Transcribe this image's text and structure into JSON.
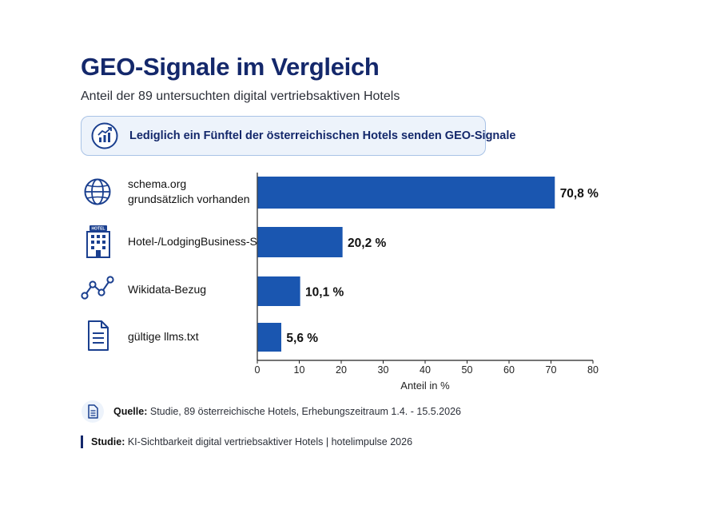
{
  "header": {
    "title": "GEO-Signale im Vergleich",
    "subtitle": "Anteil der 89 untersuchten digital vertriebsaktiven Hotels"
  },
  "callout": {
    "icon": "trend-chart-icon",
    "text": "Lediglich ein Fünftel der österreichischen Hotels senden GEO-Signale"
  },
  "categories": [
    {
      "icon": "globe-icon",
      "label_lines": [
        "schema.org",
        "grundsätzlich vorhanden"
      ]
    },
    {
      "icon": "hotel-building-icon",
      "icon_text": "HOTEL",
      "label_lines": [
        "Hotel-/LodgingBusiness-Schema"
      ]
    },
    {
      "icon": "network-nodes-icon",
      "label_lines": [
        "Wikidata-Bezug"
      ]
    },
    {
      "icon": "document-icon",
      "label_lines": [
        "gültige llms.txt"
      ]
    }
  ],
  "chart_data": {
    "type": "bar",
    "orientation": "horizontal",
    "title": "GEO-Signale im Vergleich",
    "subtitle": "Anteil der 89 untersuchten digital vertriebsaktiven Hotels",
    "categories": [
      "schema.org grundsätzlich vorhanden",
      "Hotel-/LodgingBusiness-Schema",
      "Wikidata-Bezug",
      "gültige llms.txt"
    ],
    "values": [
      70.8,
      20.2,
      10.1,
      5.6
    ],
    "data_labels": [
      "70,8 %",
      "20,2 %",
      "10,1 %",
      "5,6 %"
    ],
    "xlabel": "Anteil in %",
    "ylabel": "",
    "xlim": [
      0,
      80
    ],
    "xticks": [
      0,
      10,
      20,
      30,
      40,
      50,
      60,
      70,
      80
    ],
    "grid": false,
    "legend": "none",
    "bar_color": "#1a56b0"
  },
  "source": {
    "icon": "document-small-icon",
    "label": "Quelle:",
    "text": "Studie, 89 österreichische Hotels, Erhebungszeitraum 1.4. - 15.5.2026"
  },
  "footer": {
    "label": "Studie:",
    "text": "KI-Sichtbarkeit digital vertriebsaktiver Hotels | hotelimpulse 2026"
  },
  "colors": {
    "title": "#14286b",
    "accent": "#1a56b0",
    "icon": "#1a3f8f",
    "callout_bg": "#edf3fb",
    "callout_border": "#a9c3e6"
  }
}
